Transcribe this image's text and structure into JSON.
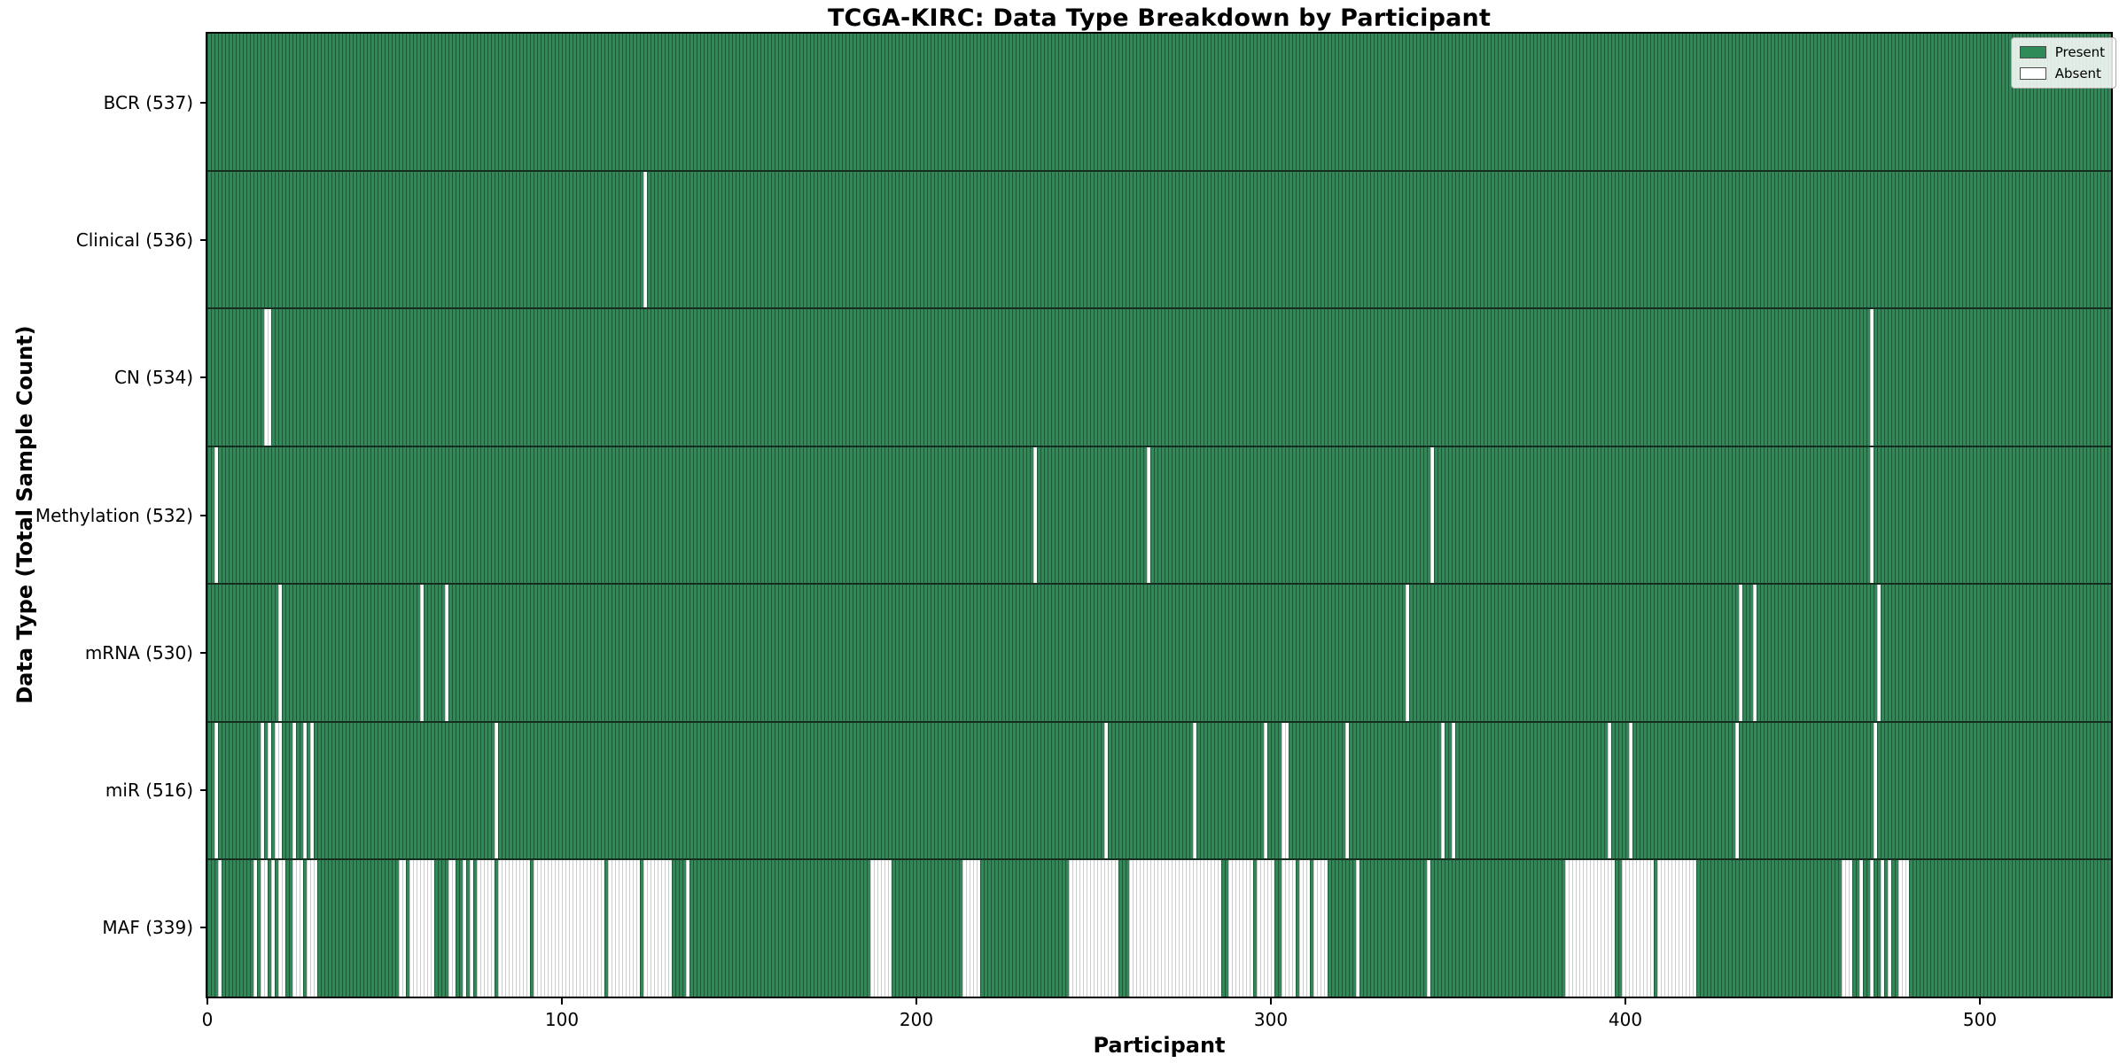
{
  "figure": {
    "title": "TCGA-KIRC: Data Type Breakdown by Participant",
    "xlabel": "Participant",
    "ylabel": "Data Type (Total Sample Count)"
  },
  "legend": {
    "present_label": "Present",
    "absent_label": "Absent"
  },
  "colors": {
    "present": "#2e8b57",
    "present_edge": "#1d5937",
    "absent": "#ffffff",
    "absent_edge": "#cccccc",
    "row_divider": "#152e1f",
    "spine": "#000000"
  },
  "chart_data": {
    "type": "heatmap",
    "title": "TCGA-KIRC: Data Type Breakdown by Participant",
    "xlabel": "Participant",
    "ylabel": "Data Type (Total Sample Count)",
    "legend_position": "upper right",
    "n_participants": 537,
    "x_ticks": [
      0,
      100,
      200,
      300,
      400,
      500
    ],
    "value_legend": {
      "present": "Present",
      "absent": "Absent"
    },
    "rows": [
      {
        "data_type": "BCR",
        "label": "BCR (537)",
        "present_count": 537,
        "absent_ranges": []
      },
      {
        "data_type": "Clinical",
        "label": "Clinical (536)",
        "present_count": 536,
        "absent_ranges": [
          [
            123,
            123
          ]
        ]
      },
      {
        "data_type": "CN",
        "label": "CN (534)",
        "present_count": 534,
        "absent_ranges": [
          [
            16,
            17
          ],
          [
            469,
            469
          ]
        ]
      },
      {
        "data_type": "Methylation",
        "label": "Methylation (532)",
        "present_count": 532,
        "absent_ranges": [
          [
            2,
            2
          ],
          [
            233,
            233
          ],
          [
            265,
            265
          ],
          [
            345,
            345
          ],
          [
            469,
            469
          ]
        ]
      },
      {
        "data_type": "mRNA",
        "label": "mRNA (530)",
        "present_count": 530,
        "absent_ranges": [
          [
            20,
            20
          ],
          [
            60,
            60
          ],
          [
            67,
            67
          ],
          [
            338,
            338
          ],
          [
            432,
            432
          ],
          [
            436,
            436
          ],
          [
            471,
            471
          ]
        ]
      },
      {
        "data_type": "miR",
        "label": "miR (516)",
        "present_count": 516,
        "absent_ranges": [
          [
            2,
            2
          ],
          [
            15,
            15
          ],
          [
            17,
            17
          ],
          [
            19,
            20
          ],
          [
            24,
            24
          ],
          [
            27,
            27
          ],
          [
            29,
            29
          ],
          [
            81,
            81
          ],
          [
            253,
            253
          ],
          [
            278,
            278
          ],
          [
            298,
            298
          ],
          [
            303,
            304
          ],
          [
            321,
            321
          ],
          [
            348,
            348
          ],
          [
            351,
            351
          ],
          [
            395,
            395
          ],
          [
            401,
            401
          ],
          [
            431,
            431
          ],
          [
            470,
            470
          ]
        ]
      },
      {
        "data_type": "MAF",
        "label": "MAF (339)",
        "present_count": 339,
        "absent_ranges": [
          [
            3,
            3
          ],
          [
            13,
            13
          ],
          [
            15,
            16
          ],
          [
            18,
            18
          ],
          [
            20,
            21
          ],
          [
            24,
            26
          ],
          [
            28,
            30
          ],
          [
            54,
            55
          ],
          [
            57,
            63
          ],
          [
            68,
            69
          ],
          [
            72,
            72
          ],
          [
            74,
            74
          ],
          [
            76,
            80
          ],
          [
            82,
            90
          ],
          [
            92,
            111
          ],
          [
            113,
            121
          ],
          [
            123,
            130
          ],
          [
            135,
            135
          ],
          [
            187,
            192
          ],
          [
            213,
            217
          ],
          [
            243,
            256
          ],
          [
            260,
            285
          ],
          [
            288,
            294
          ],
          [
            296,
            300
          ],
          [
            303,
            306
          ],
          [
            308,
            310
          ],
          [
            312,
            315
          ],
          [
            324,
            324
          ],
          [
            344,
            344
          ],
          [
            383,
            396
          ],
          [
            399,
            407
          ],
          [
            409,
            419
          ],
          [
            461,
            463
          ],
          [
            466,
            466
          ],
          [
            469,
            469
          ],
          [
            472,
            472
          ],
          [
            474,
            474
          ],
          [
            477,
            479
          ]
        ]
      }
    ]
  }
}
